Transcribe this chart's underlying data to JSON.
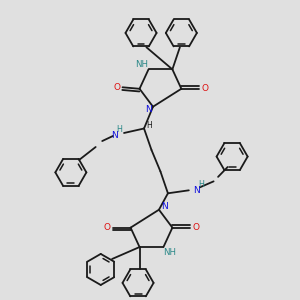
{
  "bg_color": "#e0e0e0",
  "bond_color": "#1a1a1a",
  "N_color": "#1010dd",
  "O_color": "#dd1010",
  "NH_color": "#2a8888",
  "lw": 1.3,
  "figsize": [
    3.0,
    3.0
  ],
  "dpi": 100,
  "xlim": [
    0,
    10
  ],
  "ylim": [
    0,
    10
  ]
}
